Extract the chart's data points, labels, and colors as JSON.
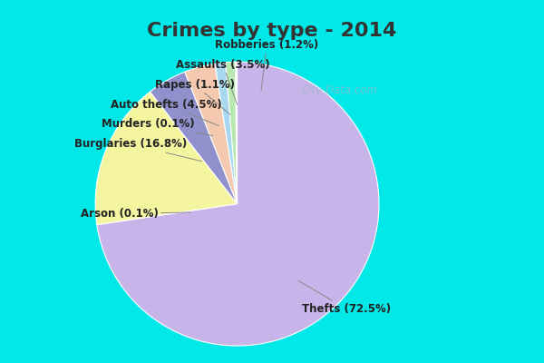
{
  "title": "Crimes by type - 2014",
  "title_fontsize": 16,
  "title_fontweight": "bold",
  "title_color": "#333333",
  "labels": [
    "Thefts",
    "Burglaries",
    "Auto thefts",
    "Assaults",
    "Robberies",
    "Rapes",
    "Murders",
    "Arson"
  ],
  "pct_labels": [
    "Thefts (72.5%)",
    "Burglaries (16.8%)",
    "Auto thefts (4.5%)",
    "Assaults (3.5%)",
    "Robberies (1.2%)",
    "Rapes (1.1%)",
    "Murders (0.1%)",
    "Arson (0.1%)"
  ],
  "values": [
    72.5,
    16.8,
    4.5,
    3.5,
    1.2,
    1.1,
    0.1,
    0.1
  ],
  "colors": [
    "#c8b4e8",
    "#f5f5a0",
    "#9090cc",
    "#f5c8b0",
    "#a8d8f0",
    "#b8e8b0",
    "#f0d0d8",
    "#d0e8c8"
  ],
  "startangle": 90,
  "counterclock": false,
  "bg_cyan": "#00e8e8",
  "bg_main": "#d5eee0",
  "watermark": "City-Data.com",
  "label_fontsize": 8.5,
  "label_color": "#222222"
}
